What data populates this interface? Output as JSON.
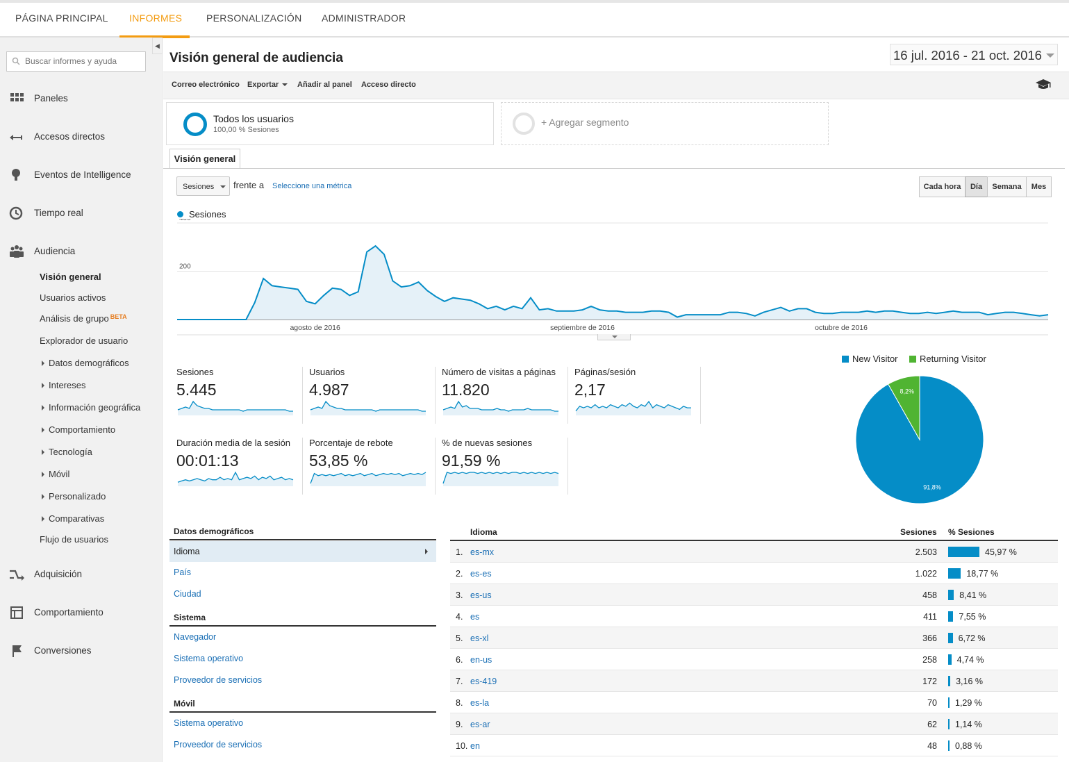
{
  "topnav": {
    "tabs": [
      {
        "label": "PÁGINA PRINCIPAL"
      },
      {
        "label": "INFORMES"
      },
      {
        "label": "PERSONALIZACIÓN"
      },
      {
        "label": "ADMINISTRADOR"
      }
    ],
    "active_tab": "INFORMES",
    "accent": "#f39c12"
  },
  "sidebar": {
    "search_placeholder": "Buscar informes y ayuda",
    "main_items": [
      {
        "label": "Paneles",
        "icon": "grid-icon"
      },
      {
        "label": "Accesos directos",
        "icon": "shortcut-arrow-icon"
      },
      {
        "label": "Eventos de Intelligence",
        "icon": "lightbulb-icon"
      },
      {
        "label": "Tiempo real",
        "icon": "clock-icon"
      },
      {
        "label": "Audiencia",
        "icon": "people-icon"
      },
      {
        "label": "Adquisición",
        "icon": "acquisition-arrows-icon"
      },
      {
        "label": "Comportamiento",
        "icon": "layout-icon"
      },
      {
        "label": "Conversiones",
        "icon": "flag-icon"
      }
    ],
    "audience_items": [
      {
        "label": "Visión general"
      },
      {
        "label": "Usuarios activos"
      },
      {
        "label": "Análisis de grupo",
        "badge": "BETA"
      },
      {
        "label": "Explorador de usuario"
      },
      {
        "label": "Datos demográficos"
      },
      {
        "label": "Intereses"
      },
      {
        "label": "Información geográfica"
      },
      {
        "label": "Comportamiento"
      },
      {
        "label": "Tecnología"
      },
      {
        "label": "Móvil"
      },
      {
        "label": "Personalizado"
      },
      {
        "label": "Comparativas"
      },
      {
        "label": "Flujo de usuarios"
      }
    ]
  },
  "header": {
    "title": "Visión general de audiencia",
    "date_range": "16 jul. 2016 - 21 oct. 2016"
  },
  "toolbar": {
    "email": "Correo electrónico",
    "export": "Exportar",
    "add_dashboard": "Añadir al panel",
    "shortcut": "Acceso directo"
  },
  "segments": {
    "all_users": "Todos los usuarios",
    "all_users_sub": "100,00 % Sesiones",
    "add": "+ Agregar segmento"
  },
  "overview_tab": "Visión general",
  "metric_select": {
    "selected": "Sesiones",
    "versus": "frente a",
    "select_metric": "Seleccione una métrica"
  },
  "granularity": [
    {
      "label": "Cada hora",
      "active": false
    },
    {
      "label": "Día",
      "active": true
    },
    {
      "label": "Semana",
      "active": false
    },
    {
      "label": "Mes",
      "active": false
    }
  ],
  "chart_data": [
    {
      "type": "area",
      "series": [
        {
          "name": "Sesiones",
          "color": "#058dc7",
          "values": [
            0,
            0,
            0,
            0,
            0,
            0,
            0,
            0,
            0,
            70,
            170,
            140,
            135,
            130,
            125,
            75,
            65,
            100,
            130,
            125,
            100,
            115,
            280,
            305,
            270,
            160,
            135,
            140,
            155,
            120,
            95,
            75,
            90,
            85,
            80,
            65,
            45,
            55,
            40,
            55,
            45,
            90,
            40,
            45,
            35,
            35,
            35,
            40,
            55,
            40,
            35,
            35,
            30,
            30,
            30,
            35,
            35,
            30,
            10,
            20,
            20,
            20,
            20,
            20,
            30,
            30,
            25,
            15,
            30,
            40,
            50,
            35,
            45,
            45,
            30,
            25,
            25,
            30,
            30,
            30,
            35,
            30,
            35,
            35,
            30,
            25,
            25,
            30,
            25,
            30,
            35,
            30,
            30,
            30,
            20,
            25,
            30,
            30,
            25,
            20,
            15,
            20
          ]
        }
      ],
      "x_labels": [
        "agosto de 2016",
        "septiembre de 2016",
        "octubre de 2016"
      ],
      "y_ticks": [
        200,
        400
      ],
      "ylim": [
        0,
        400
      ],
      "legend": "top-left"
    },
    {
      "type": "pie",
      "categories": [
        "New Visitor",
        "Returning Visitor"
      ],
      "values": [
        91.8,
        8.2
      ],
      "labels": [
        "91,8%",
        "8,2%"
      ],
      "colors": [
        "#058dc7",
        "#50b432"
      ],
      "legend": "top"
    }
  ],
  "kpis": [
    {
      "label": "Sesiones",
      "value": "5.445",
      "spark": [
        2,
        3,
        4,
        3,
        8,
        5,
        4,
        3,
        3,
        2,
        2,
        2,
        2,
        2,
        2,
        2,
        2,
        1,
        2,
        2,
        2,
        2,
        2,
        2,
        2,
        2,
        2,
        2,
        2,
        1,
        1
      ]
    },
    {
      "label": "Usuarios",
      "value": "4.987",
      "spark": [
        2,
        3,
        4,
        3,
        8,
        5,
        4,
        3,
        3,
        2,
        2,
        2,
        2,
        2,
        2,
        2,
        2,
        1,
        2,
        2,
        2,
        2,
        2,
        2,
        2,
        2,
        2,
        2,
        2,
        1,
        1
      ]
    },
    {
      "label": "Número de visitas a páginas",
      "value": "11.820",
      "spark": [
        2,
        3,
        4,
        3,
        8,
        4,
        5,
        3,
        3,
        3,
        2,
        2,
        2,
        2,
        3,
        2,
        2,
        1,
        2,
        2,
        2,
        2,
        3,
        2,
        2,
        2,
        2,
        2,
        2,
        1,
        1
      ]
    },
    {
      "label": "Páginas/sesión",
      "value": "2,17",
      "spark": [
        1,
        4,
        3,
        4,
        3,
        5,
        3,
        4,
        3,
        5,
        4,
        3,
        5,
        4,
        6,
        4,
        3,
        5,
        4,
        7,
        3,
        5,
        4,
        3,
        5,
        4,
        3,
        2,
        4,
        3,
        3
      ]
    },
    {
      "label": "Duración media de la sesión",
      "value": "00:01:13",
      "spark": [
        1,
        2,
        3,
        2,
        3,
        4,
        3,
        2,
        4,
        3,
        3,
        5,
        3,
        4,
        3,
        9,
        3,
        4,
        5,
        4,
        6,
        3,
        5,
        4,
        6,
        3,
        4,
        5,
        3,
        4,
        3
      ]
    },
    {
      "label": "Porcentaje de rebote",
      "value": "53,85 %",
      "spark": [
        0,
        9,
        7,
        8,
        7,
        8,
        7,
        8,
        9,
        7,
        8,
        7,
        8,
        9,
        7,
        8,
        9,
        7,
        8,
        9,
        8,
        9,
        8,
        9,
        7,
        8,
        9,
        8,
        9,
        8,
        10
      ]
    },
    {
      "label": "% de nuevas sesiones",
      "value": "91,59 %",
      "spark": [
        0,
        10,
        9,
        10,
        9,
        10,
        9,
        10,
        10,
        9,
        10,
        9,
        10,
        9,
        10,
        9,
        10,
        9,
        10,
        10,
        9,
        10,
        9,
        10,
        9,
        10,
        9,
        10,
        9,
        10,
        9
      ]
    }
  ],
  "demographics": {
    "heading": "Datos demográficos",
    "items": [
      "Idioma",
      "País",
      "Ciudad"
    ],
    "system_heading": "Sistema",
    "system_items": [
      "Navegador",
      "Sistema operativo",
      "Proveedor de servicios"
    ],
    "mobile_heading": "Móvil",
    "mobile_items": [
      "Sistema operativo",
      "Proveedor de servicios"
    ]
  },
  "language_table": {
    "headers": {
      "dimension": "Idioma",
      "sessions": "Sesiones",
      "pct": "% Sesiones"
    },
    "rows": [
      {
        "idx": "1.",
        "lang": "es-mx",
        "sessions": "2.503",
        "pct": "45,97 %",
        "share": 45.97
      },
      {
        "idx": "2.",
        "lang": "es-es",
        "sessions": "1.022",
        "pct": "18,77 %",
        "share": 18.77
      },
      {
        "idx": "3.",
        "lang": "es-us",
        "sessions": "458",
        "pct": "8,41 %",
        "share": 8.41
      },
      {
        "idx": "4.",
        "lang": "es",
        "sessions": "411",
        "pct": "7,55 %",
        "share": 7.55
      },
      {
        "idx": "5.",
        "lang": "es-xl",
        "sessions": "366",
        "pct": "6,72 %",
        "share": 6.72
      },
      {
        "idx": "6.",
        "lang": "en-us",
        "sessions": "258",
        "pct": "4,74 %",
        "share": 4.74
      },
      {
        "idx": "7.",
        "lang": "es-419",
        "sessions": "172",
        "pct": "3,16 %",
        "share": 3.16
      },
      {
        "idx": "8.",
        "lang": "es-la",
        "sessions": "70",
        "pct": "1,29 %",
        "share": 1.29
      },
      {
        "idx": "9.",
        "lang": "es-ar",
        "sessions": "62",
        "pct": "1,14 %",
        "share": 1.14
      },
      {
        "idx": "10.",
        "lang": "en",
        "sessions": "48",
        "pct": "0,88 %",
        "share": 0.88
      }
    ]
  }
}
